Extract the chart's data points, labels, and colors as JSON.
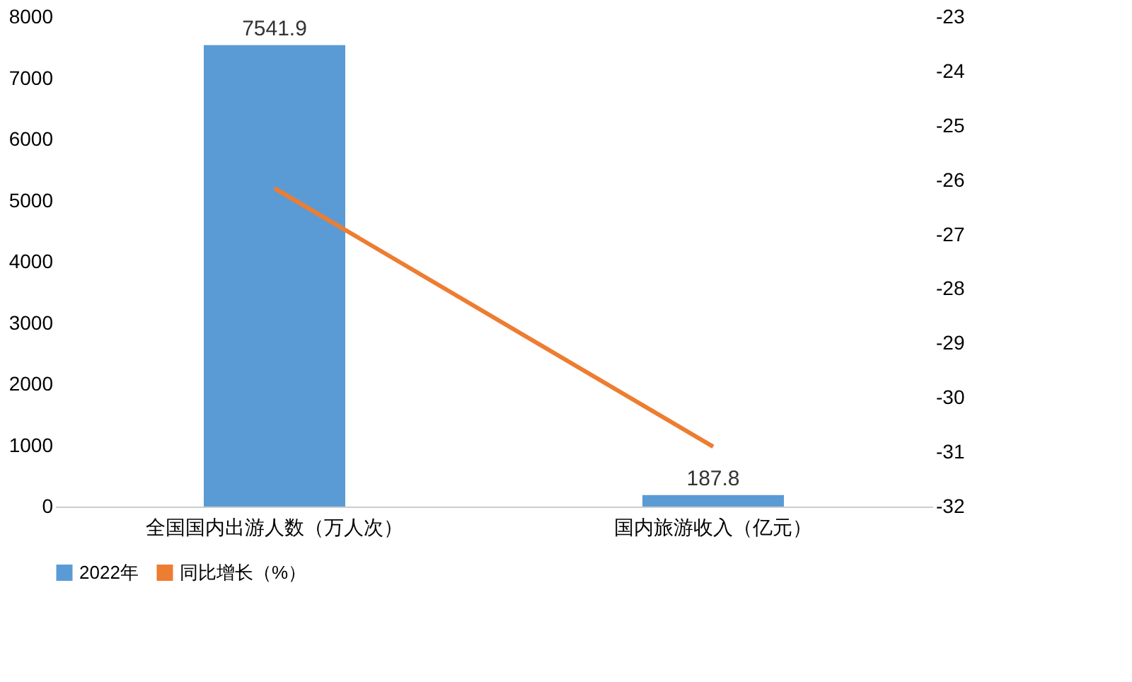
{
  "chart_data": {
    "type": "bar",
    "categories": [
      "全国国内出游人数（万人次）",
      "国内旅游收入（亿元）"
    ],
    "series": [
      {
        "name": "2022年",
        "color": "#5b9bd5",
        "values": [
          7541.9,
          187.8
        ],
        "value_labels": [
          "7541.9",
          "187.8"
        ]
      },
      {
        "name": "同比增长（%）",
        "type": "line",
        "axis": "y2",
        "color": "#ed7d31",
        "values": [
          -26.15,
          -30.9
        ]
      }
    ],
    "ylim": [
      0,
      8000
    ],
    "yticks": [
      0,
      1000,
      2000,
      3000,
      4000,
      5000,
      6000,
      7000,
      8000
    ],
    "y2lim": [
      -32,
      -23
    ],
    "y2ticks": [
      -32,
      -31,
      -30,
      -29,
      -28,
      -27,
      -26,
      -25,
      -24,
      -23
    ],
    "grid": false,
    "legend": "bottom"
  }
}
